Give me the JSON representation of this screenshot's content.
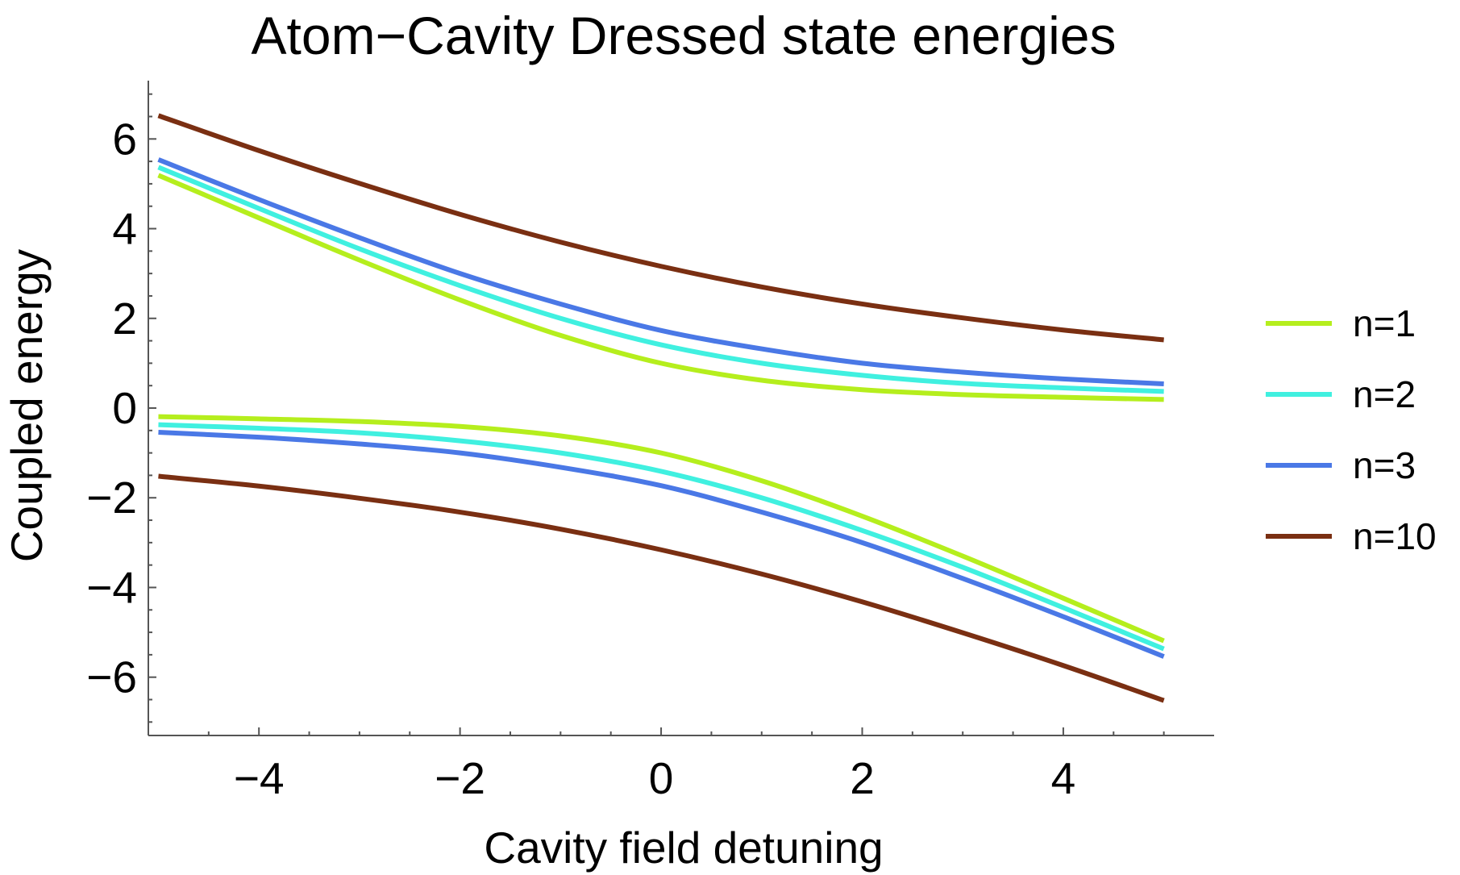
{
  "chart_data": {
    "type": "line",
    "title": "Atom−Cavity Dressed state energies",
    "xlabel": "Cavity field detuning",
    "ylabel": "Coupled energy",
    "xlim": [
      -5.1,
      5.5
    ],
    "ylim": [
      -7.3,
      7.3
    ],
    "x_ticks": [
      -4,
      -2,
      0,
      2,
      4
    ],
    "x_tick_labels": [
      "−4",
      "−2",
      "0",
      "2",
      "4"
    ],
    "y_ticks": [
      -6,
      -4,
      -2,
      0,
      2,
      4,
      6
    ],
    "y_tick_labels": [
      "−6",
      "−4",
      "−2",
      "0",
      "2",
      "4",
      "6"
    ],
    "x_minor_ticks": [
      -4.5,
      -3.5,
      -3,
      -2.5,
      -1.5,
      -1,
      -0.5,
      0.5,
      1,
      1.5,
      2.5,
      3,
      3.5,
      4.5,
      5
    ],
    "y_minor_ticks": [
      -7,
      -6.5,
      -5.5,
      -5,
      -4.5,
      -3.5,
      -3,
      -2.5,
      -1.5,
      -1,
      -0.5,
      0.5,
      1,
      1.5,
      2.5,
      3,
      3.5,
      4.5,
      5,
      5.5,
      6.5,
      7
    ],
    "x": [
      -5,
      -4,
      -3,
      -2,
      -1,
      0,
      1,
      2,
      3,
      4,
      5
    ],
    "grid": false,
    "legend_position": "right",
    "series": [
      {
        "name": "n=1",
        "color": "#b5ee1d",
        "upper": [
          5.19,
          4.24,
          3.3,
          2.41,
          1.62,
          1.0,
          0.62,
          0.41,
          0.3,
          0.24,
          0.19
        ],
        "lower": [
          -0.19,
          -0.24,
          -0.3,
          -0.41,
          -0.62,
          -1.0,
          -1.62,
          -2.41,
          -3.3,
          -4.24,
          -5.19
        ]
      },
      {
        "name": "n=2",
        "color": "#40f0e0",
        "upper": [
          5.37,
          4.45,
          3.55,
          2.73,
          2.0,
          1.41,
          1.0,
          0.73,
          0.55,
          0.45,
          0.37
        ],
        "lower": [
          -0.37,
          -0.45,
          -0.55,
          -0.73,
          -1.0,
          -1.41,
          -2.0,
          -2.73,
          -3.55,
          -4.45,
          -5.37
        ]
      },
      {
        "name": "n=3",
        "color": "#4a78e6",
        "upper": [
          5.54,
          4.65,
          3.8,
          3.0,
          2.32,
          1.73,
          1.32,
          1.0,
          0.8,
          0.65,
          0.54
        ],
        "lower": [
          -0.54,
          -0.65,
          -0.8,
          -1.0,
          -1.32,
          -1.73,
          -2.32,
          -3.0,
          -3.8,
          -4.65,
          -5.54
        ]
      },
      {
        "name": "n=10",
        "color": "#7a2f12",
        "upper": [
          6.52,
          5.74,
          5.01,
          4.32,
          3.7,
          3.16,
          2.7,
          2.32,
          2.01,
          1.74,
          1.52
        ],
        "lower": [
          -1.52,
          -1.74,
          -2.01,
          -2.32,
          -2.7,
          -3.16,
          -3.7,
          -4.32,
          -5.01,
          -5.74,
          -6.52
        ]
      }
    ]
  }
}
